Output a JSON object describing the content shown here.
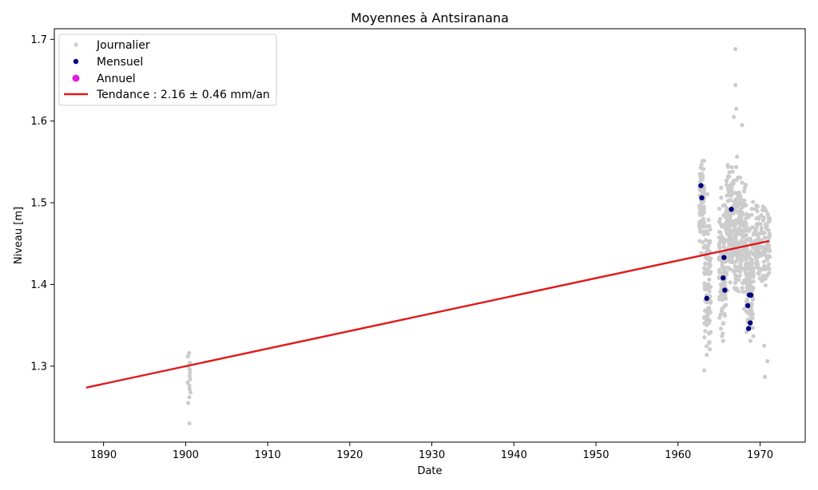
{
  "chart_data": {
    "type": "scatter",
    "title": "Moyennes à Antsiranana",
    "xlabel": "Date",
    "ylabel": "Niveau [m]",
    "xlim": [
      1884,
      1975.5
    ],
    "ylim": [
      1.207,
      1.713
    ],
    "xticks": [
      "1890",
      "1900",
      "1910",
      "1920",
      "1930",
      "1940",
      "1950",
      "1960",
      "1970"
    ],
    "yticks": [
      "1.3",
      "1.4",
      "1.5",
      "1.6",
      "1.7"
    ],
    "grid": false,
    "legend_position": "top-left",
    "legend": [
      {
        "label": "Journalier",
        "marker": "small-dot",
        "color": "#cccccc"
      },
      {
        "label": "Mensuel",
        "marker": "dot",
        "color": "#00007f"
      },
      {
        "label": "Annuel",
        "marker": "large-dot",
        "color": "#e01ee0"
      },
      {
        "label": "Tendance : 2.16 ± 0.46 mm/an",
        "marker": "line",
        "color": "#e0191b"
      }
    ],
    "series": [
      {
        "name": "Journalier",
        "color": "#cccccc",
        "clusters": [
          {
            "x_range": [
              1900.2,
              1900.6
            ],
            "y_values": [
              1.23,
              1.255,
              1.262,
              1.268,
              1.272,
              1.276,
              1.28,
              1.284,
              1.288,
              1.292,
              1.296,
              1.3,
              1.304,
              1.312,
              1.316
            ]
          },
          {
            "x_range": [
              1962.6,
              1963.2
            ],
            "y_range": [
              1.42,
              1.578
            ],
            "count": 90
          },
          {
            "x_range": [
              1963.2,
              1964.0
            ],
            "y_range": [
              1.282,
              1.52
            ],
            "count": 110
          },
          {
            "x_range": [
              1965.0,
              1965.9
            ],
            "y_range": [
              1.314,
              1.532
            ],
            "count": 120
          },
          {
            "x_range": [
              1965.9,
              1967.2
            ],
            "y_range": [
              1.36,
              1.58
            ],
            "count": 170
          },
          {
            "x_range": [
              1967.2,
              1968.3
            ],
            "y_range": [
              1.35,
              1.56
            ],
            "count": 130
          },
          {
            "x_range": [
              1968.3,
              1969.2
            ],
            "y_range": [
              1.286,
              1.52
            ],
            "count": 120
          },
          {
            "x_range": [
              1969.2,
              1971.2
            ],
            "y_range": [
              1.38,
              1.518
            ],
            "count": 140
          }
        ],
        "outliers": [
          {
            "x": 1967.0,
            "y": 1.688
          },
          {
            "x": 1967.0,
            "y": 1.644
          },
          {
            "x": 1967.1,
            "y": 1.615
          },
          {
            "x": 1966.8,
            "y": 1.605
          },
          {
            "x": 1967.8,
            "y": 1.595
          },
          {
            "x": 1970.5,
            "y": 1.325
          },
          {
            "x": 1970.6,
            "y": 1.287
          },
          {
            "x": 1970.9,
            "y": 1.306
          }
        ]
      },
      {
        "name": "Mensuel",
        "color": "#00007f",
        "points": [
          {
            "x": 1962.8,
            "y": 1.521
          },
          {
            "x": 1962.9,
            "y": 1.506
          },
          {
            "x": 1963.5,
            "y": 1.383
          },
          {
            "x": 1965.5,
            "y": 1.408
          },
          {
            "x": 1965.6,
            "y": 1.433
          },
          {
            "x": 1965.7,
            "y": 1.393
          },
          {
            "x": 1966.5,
            "y": 1.492
          },
          {
            "x": 1968.5,
            "y": 1.374
          },
          {
            "x": 1968.7,
            "y": 1.387
          },
          {
            "x": 1968.9,
            "y": 1.387
          },
          {
            "x": 1968.6,
            "y": 1.346
          },
          {
            "x": 1968.8,
            "y": 1.353
          }
        ]
      },
      {
        "name": "Annuel",
        "color": "#e01ee0",
        "points": []
      },
      {
        "name": "Tendance : 2.16 ± 0.46 mm/an",
        "color": "#e0191b",
        "line": [
          {
            "x": 1888.0,
            "y": 1.274
          },
          {
            "x": 1971.0,
            "y": 1.453
          }
        ]
      }
    ]
  }
}
